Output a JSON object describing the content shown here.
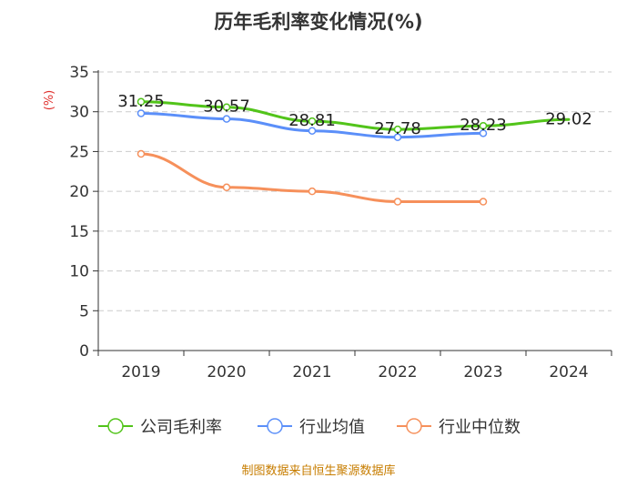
{
  "title": "历年毛利率变化情况(%)",
  "source": "制图数据来自恒生聚源数据库",
  "chart_data": {
    "type": "line",
    "title": "历年毛利率变化情况(%)",
    "ylabel": "(%)",
    "xlabel": "",
    "categories": [
      "2019",
      "2020",
      "2021",
      "2022",
      "2023",
      "2024"
    ],
    "ylim": [
      0,
      35
    ],
    "yticks": [
      0,
      5,
      10,
      15,
      20,
      25,
      30,
      35
    ],
    "grid": true,
    "legend_position": "bottom",
    "series": [
      {
        "name": "公司毛利率",
        "color": "#52c41a",
        "values": [
          31.25,
          30.57,
          28.81,
          27.78,
          28.23,
          29.02
        ],
        "labels": [
          "31.25",
          "30.57",
          "28.81",
          "27.78",
          "28.23",
          "29.02"
        ]
      },
      {
        "name": "行业均值",
        "color": "#5b8ff9",
        "values": [
          29.8,
          29.1,
          27.6,
          26.8,
          27.3,
          null
        ]
      },
      {
        "name": "行业中位数",
        "color": "#f6905b",
        "values": [
          24.7,
          20.5,
          20.0,
          18.7,
          18.7,
          null
        ]
      }
    ]
  }
}
